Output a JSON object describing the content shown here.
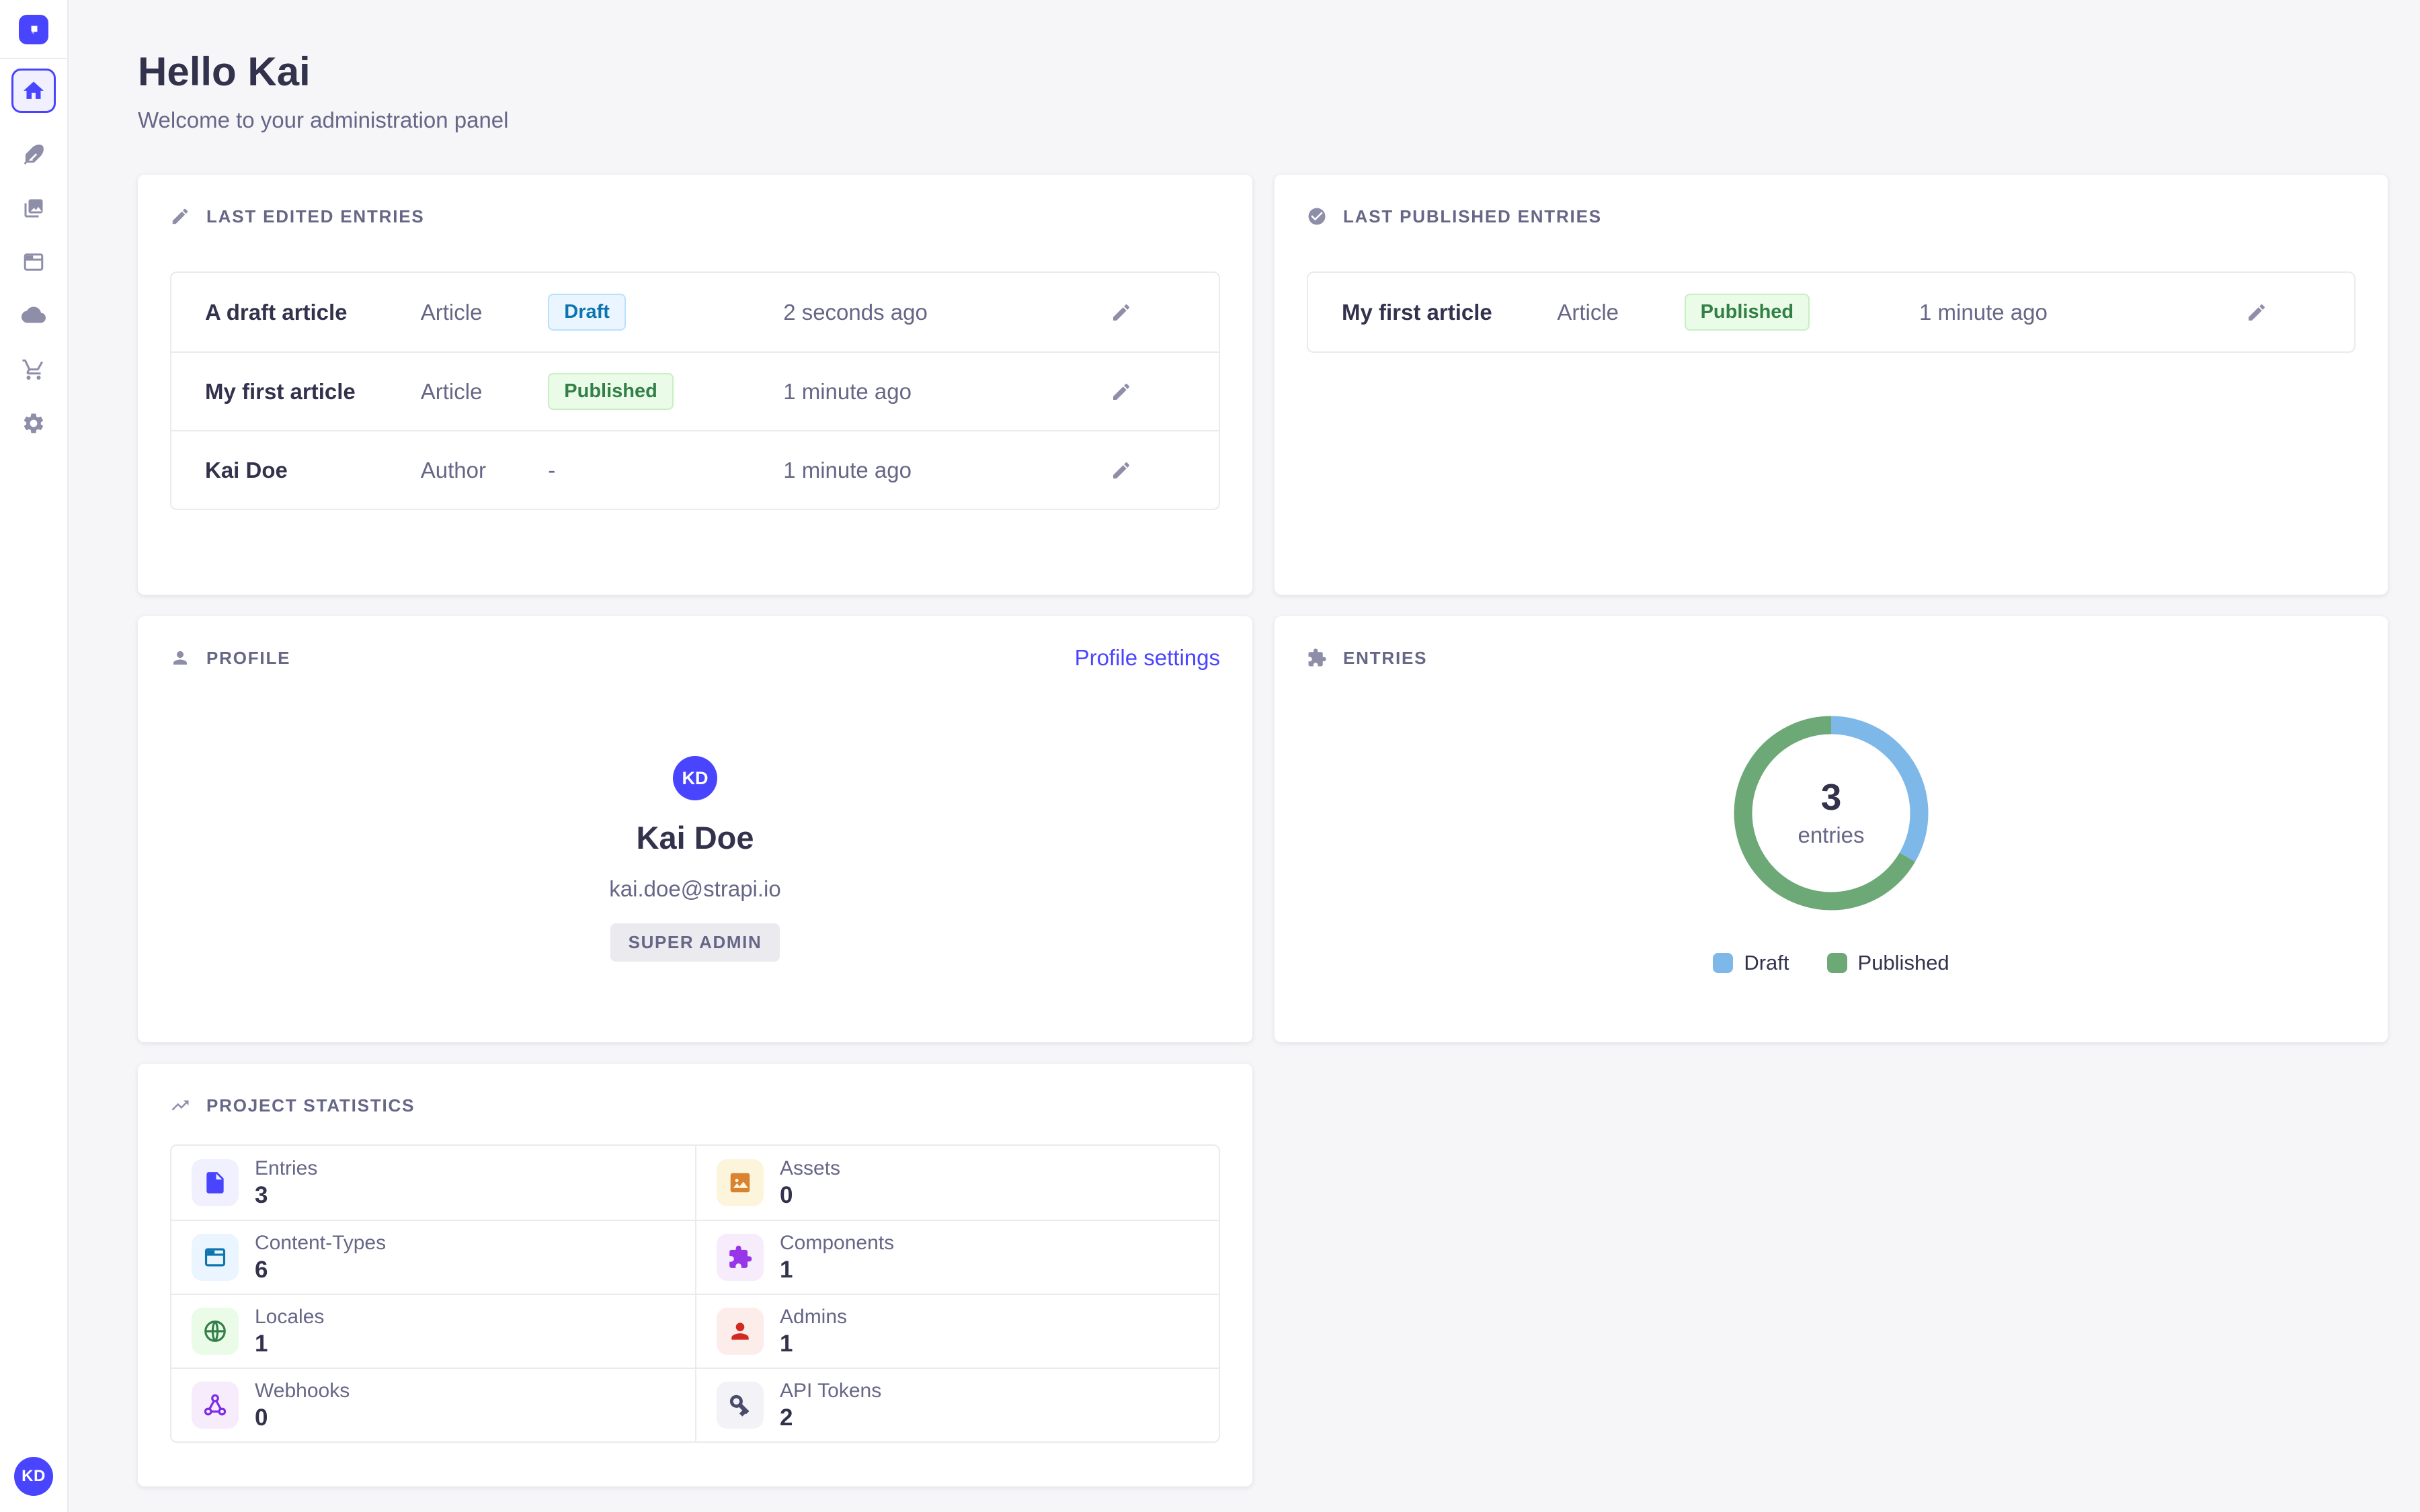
{
  "sidebar": {
    "logo_icon": "strapi-logo-icon",
    "items": [
      {
        "icon": "home-icon",
        "active": true
      },
      {
        "icon": "feather-icon",
        "active": false
      },
      {
        "icon": "images-icon",
        "active": false
      },
      {
        "icon": "layout-icon",
        "active": false
      },
      {
        "icon": "cloud-icon",
        "active": false
      },
      {
        "icon": "cart-icon",
        "active": false
      },
      {
        "icon": "gear-icon",
        "active": false
      }
    ],
    "avatar_initials": "KD"
  },
  "header": {
    "title": "Hello Kai",
    "subtitle": "Welcome to your administration panel"
  },
  "last_edited": {
    "title": "Last edited entries",
    "icon": "pencil-icon",
    "rows": [
      {
        "name": "A draft article",
        "type": "Article",
        "status": "Draft",
        "time": "2 seconds ago"
      },
      {
        "name": "My first article",
        "type": "Article",
        "status": "Published",
        "time": "1 minute ago"
      },
      {
        "name": "Kai Doe",
        "type": "Author",
        "status": "-",
        "time": "1 minute ago"
      }
    ]
  },
  "last_published": {
    "title": "Last published entries",
    "icon": "check-circle-icon",
    "rows": [
      {
        "name": "My first article",
        "type": "Article",
        "status": "Published",
        "time": "1 minute ago"
      }
    ]
  },
  "profile": {
    "title": "Profile",
    "icon": "person-icon",
    "settings_link": "Profile settings",
    "avatar_initials": "KD",
    "name": "Kai Doe",
    "email": "kai.doe@strapi.io",
    "role": "SUPER ADMIN"
  },
  "entries_card": {
    "title": "Entries",
    "icon": "puzzle-icon"
  },
  "chart_data": {
    "type": "pie",
    "title": "Entries",
    "labels": [
      "Draft",
      "Published"
    ],
    "values": [
      1,
      2
    ],
    "colors": [
      "#7db8e8",
      "#6da877"
    ],
    "center": {
      "value": "3",
      "caption": "entries"
    },
    "legend_position": "bottom"
  },
  "project_statistics": {
    "title": "Project Statistics",
    "icon": "trend-up-icon",
    "stats": [
      {
        "label": "Entries",
        "value": "3",
        "icon": "file-icon",
        "fg": "#4945ff",
        "bg": "#f0f0ff"
      },
      {
        "label": "Assets",
        "value": "0",
        "icon": "image-icon",
        "fg": "#d9822f",
        "bg": "#fdf4dc"
      },
      {
        "label": "Content-Types",
        "value": "6",
        "icon": "layout-icon",
        "fg": "#0c75af",
        "bg": "#eaf5ff"
      },
      {
        "label": "Components",
        "value": "1",
        "icon": "puzzle-icon",
        "fg": "#9736e8",
        "bg": "#f6ecfc"
      },
      {
        "label": "Locales",
        "value": "1",
        "icon": "globe-icon",
        "fg": "#328048",
        "bg": "#eafbe7"
      },
      {
        "label": "Admins",
        "value": "1",
        "icon": "admin-user-icon",
        "fg": "#d02b20",
        "bg": "#fcecea"
      },
      {
        "label": "Webhooks",
        "value": "0",
        "icon": "webhook-icon",
        "fg": "#7d2ae8",
        "bg": "#f6ecfc"
      },
      {
        "label": "API Tokens",
        "value": "2",
        "icon": "key-icon",
        "fg": "#4a4a6a",
        "bg": "#f2f2f7"
      }
    ]
  },
  "colors": {
    "primary": "#4945ff",
    "background": "#f6f6f9",
    "card_border": "#eaeaef",
    "text_dark": "#32324d",
    "text_muted": "#666687",
    "draft_badge": {
      "bg": "#eaf5ff",
      "border": "#b8e1ff",
      "text": "#0c75af"
    },
    "published_badge": {
      "bg": "#eafbe7",
      "border": "#c6f0c2",
      "text": "#328048"
    }
  }
}
